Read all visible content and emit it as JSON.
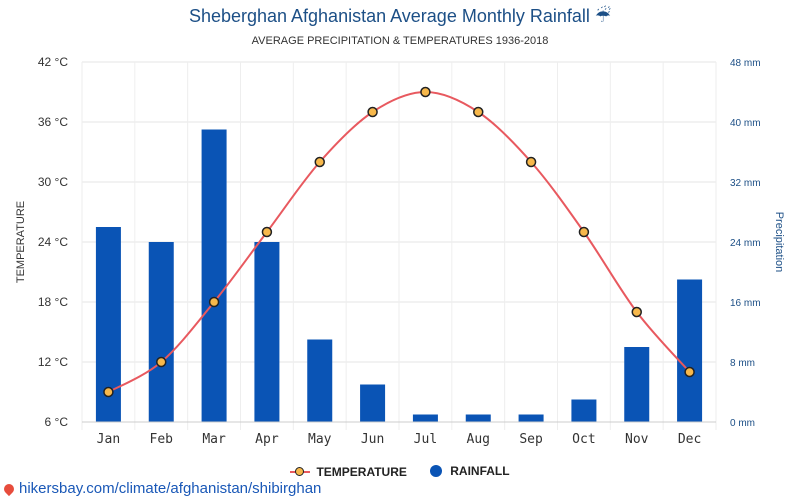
{
  "chart_data": {
    "type": "bar+line",
    "title": "Sheberghan Afghanistan Average Monthly Rainfall",
    "title_icon": "umbrella-rain",
    "subtitle": "AVERAGE PRECIPITATION & TEMPERATURES 1936-2018",
    "categories": [
      "Jan",
      "Feb",
      "Mar",
      "Apr",
      "May",
      "Jun",
      "Jul",
      "Aug",
      "Sep",
      "Oct",
      "Nov",
      "Dec"
    ],
    "series": [
      {
        "name": "TEMPERATURE",
        "type": "line",
        "axis": "left",
        "color": "#e8595f",
        "values": [
          9,
          12,
          18,
          25,
          32,
          37,
          39,
          37,
          32,
          25,
          17,
          11
        ]
      },
      {
        "name": "RAINFALL",
        "type": "bar",
        "axis": "right",
        "color": "#0a54b5",
        "values": [
          26,
          24,
          39,
          24,
          11,
          5,
          1,
          1,
          1,
          3,
          10,
          19
        ]
      }
    ],
    "y_left": {
      "label": "TEMPERATURE",
      "range": [
        6,
        42
      ],
      "ticks": [
        6,
        12,
        18,
        24,
        30,
        36,
        42
      ],
      "tick_labels": [
        "6 °C",
        "12 °C",
        "18 °C",
        "24 °C",
        "30 °C",
        "36 °C",
        "42 °C"
      ]
    },
    "y_right": {
      "label": "Precipitation",
      "range": [
        0,
        48
      ],
      "ticks": [
        0,
        8,
        16,
        24,
        32,
        40,
        48
      ],
      "tick_labels": [
        "0 mm",
        "8 mm",
        "16 mm",
        "24 mm",
        "32 mm",
        "40 mm",
        "48 mm"
      ]
    },
    "grid": true,
    "legend": "bottom-center"
  },
  "footer": {
    "text": "hikersbay.com/climate/afghanistan/shibirghan"
  }
}
